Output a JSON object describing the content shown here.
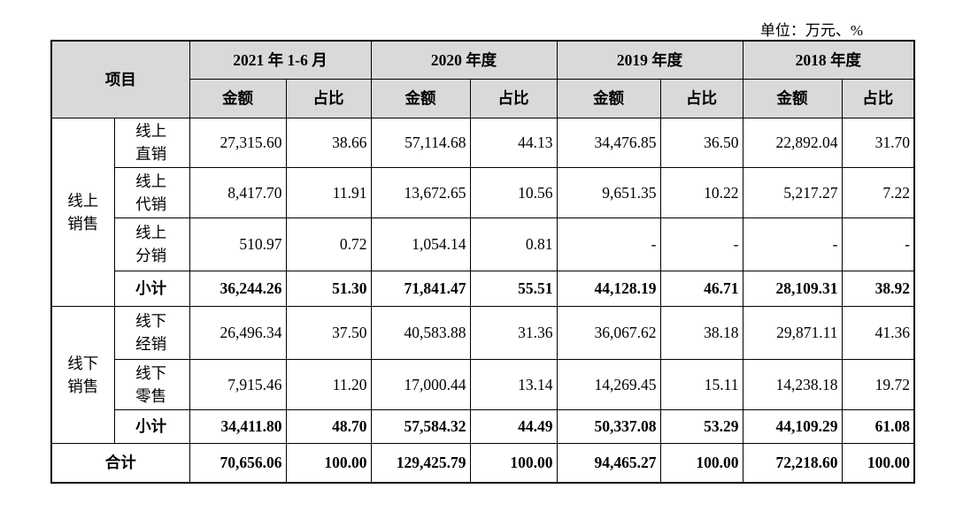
{
  "unit": "单位：万元、%",
  "table": {
    "header": {
      "item": "项目",
      "periods": [
        "2021 年 1-6 月",
        "2020 年度",
        "2019 年度",
        "2018 年度"
      ],
      "subheaders": [
        "金额",
        "占比",
        "金额",
        "占比",
        "金额",
        "占比",
        "金额",
        "占比"
      ]
    },
    "groups": [
      {
        "label": "线上销售",
        "rows": [
          {
            "label": "线上直销",
            "cells": [
              "27,315.60",
              "38.66",
              "57,114.68",
              "44.13",
              "34,476.85",
              "36.50",
              "22,892.04",
              "31.70"
            ]
          },
          {
            "label": "线上代销",
            "cells": [
              "8,417.70",
              "11.91",
              "13,672.65",
              "10.56",
              "9,651.35",
              "10.22",
              "5,217.27",
              "7.22"
            ]
          },
          {
            "label": "线上分销",
            "cells": [
              "510.97",
              "0.72",
              "1,054.14",
              "0.81",
              "-",
              "-",
              "-",
              "-"
            ]
          }
        ],
        "subtotal": {
          "label": "小计",
          "cells": [
            "36,244.26",
            "51.30",
            "71,841.47",
            "55.51",
            "44,128.19",
            "46.71",
            "28,109.31",
            "38.92"
          ]
        }
      },
      {
        "label": "线下销售",
        "rows": [
          {
            "label": "线下经销",
            "cells": [
              "26,496.34",
              "37.50",
              "40,583.88",
              "31.36",
              "36,067.62",
              "38.18",
              "29,871.11",
              "41.36"
            ]
          },
          {
            "label": "线下零售",
            "cells": [
              "7,915.46",
              "11.20",
              "17,000.44",
              "13.14",
              "14,269.45",
              "15.11",
              "14,238.18",
              "19.72"
            ]
          }
        ],
        "subtotal": {
          "label": "小计",
          "cells": [
            "34,411.80",
            "48.70",
            "57,584.32",
            "44.49",
            "50,337.08",
            "53.29",
            "44,109.29",
            "61.08"
          ]
        }
      }
    ],
    "total": {
      "label": "合计",
      "cells": [
        "70,656.06",
        "100.00",
        "129,425.79",
        "100.00",
        "94,465.27",
        "100.00",
        "72,218.60",
        "100.00"
      ]
    }
  }
}
